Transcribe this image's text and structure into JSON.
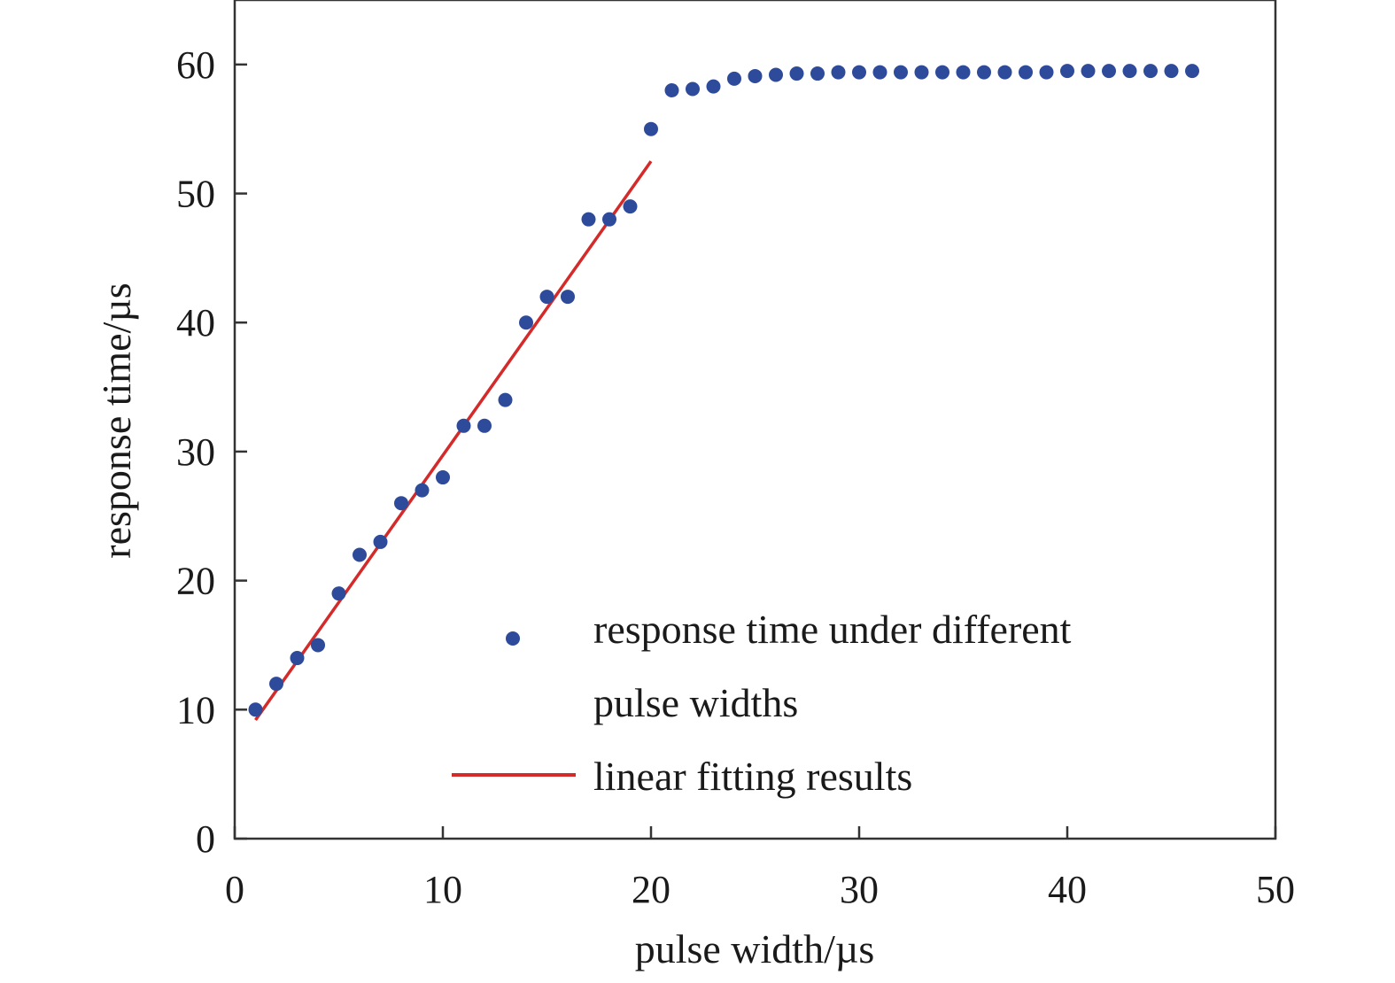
{
  "chart_data": {
    "type": "scatter",
    "xlabel": "pulse width/µs",
    "ylabel": "response time/µs",
    "xlim": [
      0,
      50
    ],
    "ylim": [
      0,
      65
    ],
    "xticks": [
      0,
      10,
      20,
      30,
      40,
      50
    ],
    "yticks": [
      0,
      10,
      20,
      30,
      40,
      50,
      60
    ],
    "grid": false,
    "legend_position": "bottom-right",
    "series": [
      {
        "name": "response time under different pulse widths",
        "kind": "scatter",
        "color": "#2e4a9b",
        "x": [
          1,
          2,
          3,
          4,
          5,
          6,
          7,
          8,
          9,
          10,
          11,
          12,
          13,
          14,
          15,
          16,
          17,
          18,
          19,
          20,
          21,
          22,
          23,
          24,
          25,
          26,
          27,
          28,
          29,
          30,
          31,
          32,
          33,
          34,
          35,
          36,
          37,
          38,
          39,
          40,
          41,
          42,
          43,
          44,
          45,
          46
        ],
        "y": [
          10,
          12,
          14,
          15,
          19,
          22,
          23,
          26,
          27,
          28,
          32,
          32,
          34,
          40,
          42,
          42,
          48,
          48,
          49,
          55,
          58,
          58.1,
          58.3,
          58.9,
          59.1,
          59.2,
          59.3,
          59.3,
          59.4,
          59.4,
          59.4,
          59.4,
          59.4,
          59.4,
          59.4,
          59.4,
          59.4,
          59.4,
          59.4,
          59.5,
          59.5,
          59.5,
          59.5,
          59.5,
          59.5,
          59.5
        ]
      },
      {
        "name": "linear fitting results",
        "kind": "line",
        "color": "#d42a2a",
        "x": [
          1,
          20
        ],
        "y": [
          9.2,
          52.5
        ]
      }
    ],
    "legend_lines": [
      [
        "response time under different",
        "pulse widths"
      ],
      [
        "linear fitting results"
      ]
    ]
  }
}
